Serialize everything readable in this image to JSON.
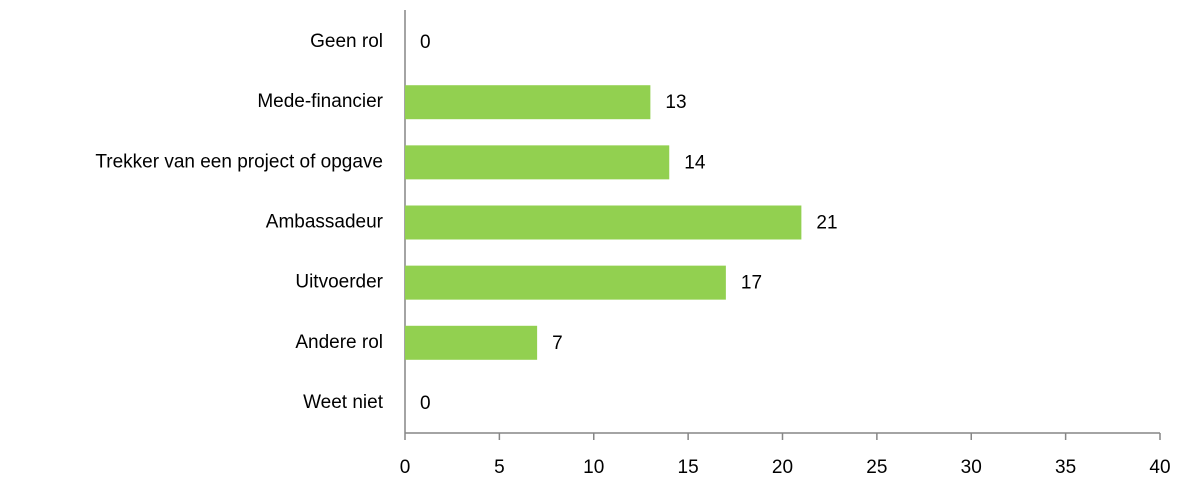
{
  "chart_data": {
    "type": "barh",
    "categories": [
      "Geen rol",
      "Mede-financier",
      "Trekker van een project of opgave",
      "Ambassadeur",
      "Uitvoerder",
      "Andere rol",
      "Weet niet"
    ],
    "values": [
      0,
      13,
      14,
      21,
      17,
      7,
      0
    ],
    "color": "#92d050",
    "xlim": [
      0,
      40
    ],
    "xticks": [
      0,
      5,
      10,
      15,
      20,
      25,
      30,
      35,
      40
    ],
    "grid": false
  }
}
